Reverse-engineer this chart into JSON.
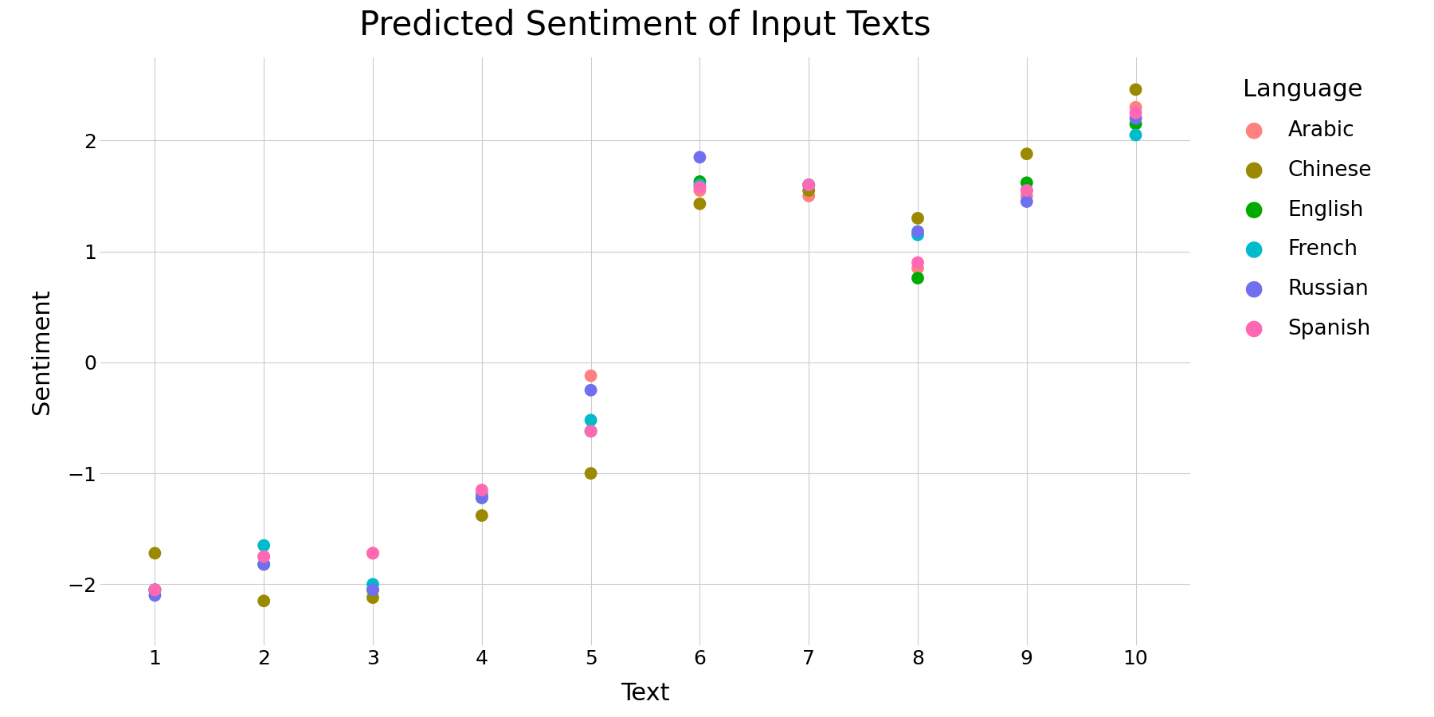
{
  "title": "Predicted Sentiment of Input Texts",
  "xlabel": "Text",
  "ylabel": "Sentiment",
  "background_color": "#ffffff",
  "languages": [
    "Arabic",
    "Chinese",
    "English",
    "French",
    "Russian",
    "Spanish"
  ],
  "colors": {
    "Arabic": "#FF8080",
    "Chinese": "#9B8A00",
    "English": "#00AA00",
    "French": "#00BBCC",
    "Russian": "#7070EE",
    "Spanish": "#FF69B4"
  },
  "sentiments": {
    "Arabic": [
      -2.05,
      -1.75,
      -1.72,
      -1.18,
      -0.12,
      1.55,
      1.5,
      0.85,
      1.5,
      2.3
    ],
    "Chinese": [
      -1.72,
      -2.15,
      -2.12,
      -1.38,
      -1.0,
      1.43,
      1.55,
      1.3,
      1.88,
      2.46
    ],
    "English": [
      -2.05,
      -1.82,
      -2.05,
      -1.22,
      -0.62,
      1.63,
      1.6,
      0.76,
      1.62,
      2.15
    ],
    "French": [
      -2.05,
      -1.65,
      -2.0,
      -1.2,
      -0.52,
      1.6,
      1.6,
      1.15,
      1.55,
      2.05
    ],
    "Russian": [
      -2.1,
      -1.82,
      -2.05,
      -1.22,
      -0.25,
      1.85,
      1.6,
      1.18,
      1.45,
      2.2
    ],
    "Spanish": [
      -2.05,
      -1.75,
      -1.72,
      -1.15,
      -0.62,
      1.58,
      1.6,
      0.9,
      1.55,
      2.25
    ]
  },
  "x_vals": [
    1,
    2,
    3,
    4,
    5,
    6,
    7,
    8,
    9,
    10
  ],
  "marker_size": 130,
  "ylim": [
    -2.55,
    2.75
  ],
  "xlim": [
    0.5,
    10.5
  ],
  "yticks": [
    -2,
    -1,
    0,
    1,
    2
  ],
  "xticks": [
    1,
    2,
    3,
    4,
    5,
    6,
    7,
    8,
    9,
    10
  ],
  "title_fontsize": 30,
  "label_fontsize": 22,
  "tick_fontsize": 18,
  "legend_fontsize": 19,
  "legend_title_fontsize": 22
}
